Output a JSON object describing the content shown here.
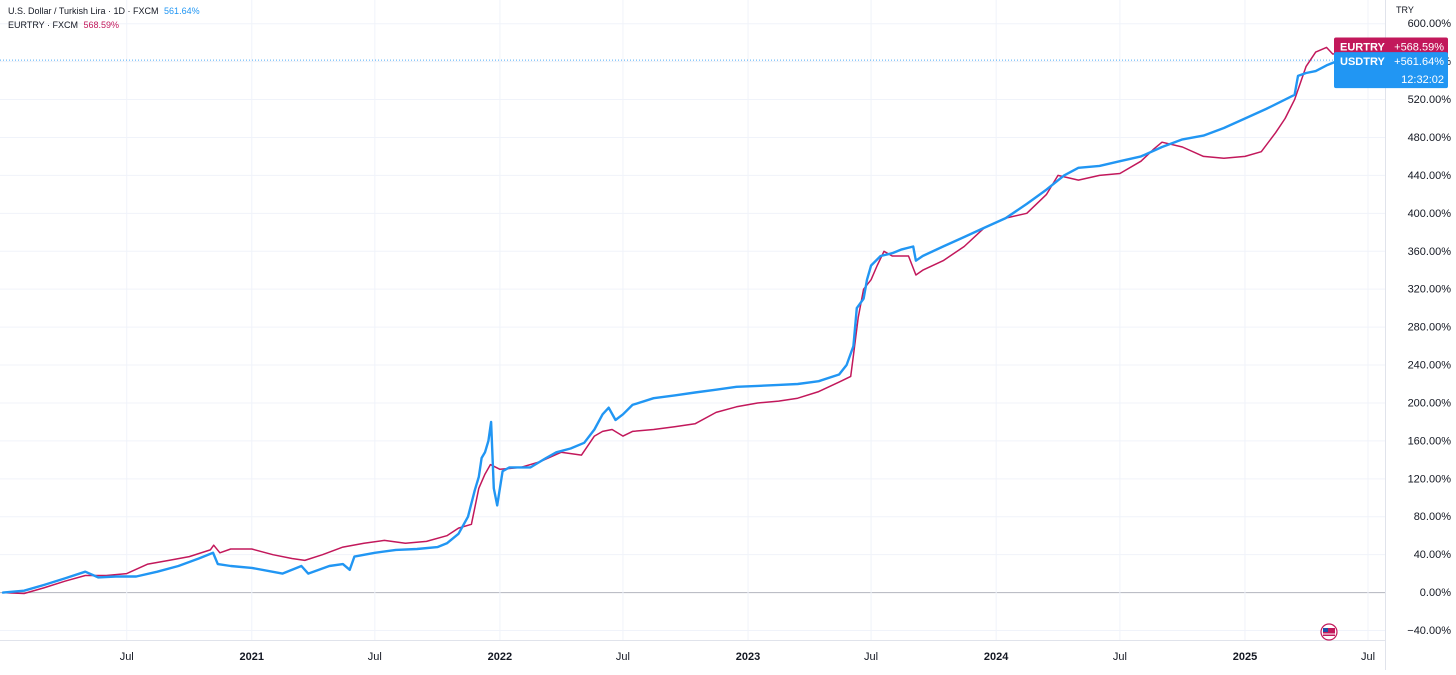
{
  "legend": [
    {
      "label": "U.S. Dollar / Turkish Lira · 1D · FXCM",
      "value": "561.64%",
      "color": "#2196f3"
    },
    {
      "label": "EURTRY · FXCM",
      "value": "568.59%",
      "color": "#c2185b"
    }
  ],
  "axis_unit": "TRY",
  "countdown": "12:32:02",
  "badges": [
    {
      "symbol": "EURTRY",
      "value": "+568.59%",
      "color": "#c2185b"
    },
    {
      "symbol": "USDTRY",
      "value": "+561.64%",
      "color": "#2196f3"
    }
  ],
  "chart_data": {
    "type": "line",
    "ylim": [
      -50,
      625
    ],
    "xlim": [
      "2020-01-01",
      "2025-07-26"
    ],
    "y_ticks": [
      {
        "v": 600,
        "label": "600.00%"
      },
      {
        "v": 560,
        "label": "560.00%"
      },
      {
        "v": 520,
        "label": "520.00%"
      },
      {
        "v": 480,
        "label": "480.00%"
      },
      {
        "v": 440,
        "label": "440.00%"
      },
      {
        "v": 400,
        "label": "400.00%"
      },
      {
        "v": 360,
        "label": "360.00%"
      },
      {
        "v": 320,
        "label": "320.00%"
      },
      {
        "v": 280,
        "label": "280.00%"
      },
      {
        "v": 240,
        "label": "240.00%"
      },
      {
        "v": 200,
        "label": "200.00%"
      },
      {
        "v": 160,
        "label": "160.00%"
      },
      {
        "v": 120,
        "label": "120.00%"
      },
      {
        "v": 80,
        "label": "80.00%"
      },
      {
        "v": 40,
        "label": "40.00%"
      },
      {
        "v": 0,
        "label": "0.00%"
      },
      {
        "v": -40,
        "label": "−40.00%"
      }
    ],
    "x_ticks": [
      {
        "date": "2020-07-01",
        "label": "Jul",
        "bold": false
      },
      {
        "date": "2021-01-01",
        "label": "2021",
        "bold": true
      },
      {
        "date": "2021-07-01",
        "label": "Jul",
        "bold": false
      },
      {
        "date": "2022-01-01",
        "label": "2022",
        "bold": true
      },
      {
        "date": "2022-07-01",
        "label": "Jul",
        "bold": false
      },
      {
        "date": "2023-01-01",
        "label": "2023",
        "bold": true
      },
      {
        "date": "2023-07-01",
        "label": "Jul",
        "bold": false
      },
      {
        "date": "2024-01-01",
        "label": "2024",
        "bold": true
      },
      {
        "date": "2024-07-01",
        "label": "Jul",
        "bold": false
      },
      {
        "date": "2025-01-01",
        "label": "2025",
        "bold": true
      },
      {
        "date": "2025-07-01",
        "label": "Jul",
        "bold": false
      }
    ],
    "series": [
      {
        "name": "USDTRY",
        "color": "#2196f3",
        "points": [
          [
            "2020-01-01",
            0
          ],
          [
            "2020-02-01",
            2
          ],
          [
            "2020-03-01",
            8
          ],
          [
            "2020-04-01",
            15
          ],
          [
            "2020-05-01",
            22
          ],
          [
            "2020-05-20",
            16
          ],
          [
            "2020-06-15",
            17
          ],
          [
            "2020-07-15",
            17
          ],
          [
            "2020-08-15",
            22
          ],
          [
            "2020-09-15",
            28
          ],
          [
            "2020-10-15",
            36
          ],
          [
            "2020-11-05",
            42
          ],
          [
            "2020-11-12",
            30
          ],
          [
            "2020-12-01",
            28
          ],
          [
            "2021-01-01",
            26
          ],
          [
            "2021-02-15",
            20
          ],
          [
            "2021-03-15",
            28
          ],
          [
            "2021-03-25",
            20
          ],
          [
            "2021-04-25",
            28
          ],
          [
            "2021-05-15",
            30
          ],
          [
            "2021-05-25",
            24
          ],
          [
            "2021-06-01",
            38
          ],
          [
            "2021-07-01",
            42
          ],
          [
            "2021-08-01",
            45
          ],
          [
            "2021-09-01",
            46
          ],
          [
            "2021-10-01",
            48
          ],
          [
            "2021-10-15",
            52
          ],
          [
            "2021-11-01",
            62
          ],
          [
            "2021-11-15",
            80
          ],
          [
            "2021-11-25",
            108
          ],
          [
            "2021-12-01",
            122
          ],
          [
            "2021-12-05",
            142
          ],
          [
            "2021-12-10",
            148
          ],
          [
            "2021-12-15",
            160
          ],
          [
            "2021-12-19",
            180
          ],
          [
            "2021-12-23",
            110
          ],
          [
            "2021-12-28",
            92
          ],
          [
            "2022-01-05",
            128
          ],
          [
            "2022-01-15",
            132
          ],
          [
            "2022-02-15",
            132
          ],
          [
            "2022-03-10",
            142
          ],
          [
            "2022-03-25",
            148
          ],
          [
            "2022-04-15",
            152
          ],
          [
            "2022-05-05",
            158
          ],
          [
            "2022-05-20",
            172
          ],
          [
            "2022-06-01",
            188
          ],
          [
            "2022-06-10",
            195
          ],
          [
            "2022-06-20",
            182
          ],
          [
            "2022-07-01",
            188
          ],
          [
            "2022-07-15",
            198
          ],
          [
            "2022-08-15",
            205
          ],
          [
            "2022-09-15",
            208
          ],
          [
            "2022-10-15",
            211
          ],
          [
            "2022-11-15",
            214
          ],
          [
            "2022-12-15",
            217
          ],
          [
            "2023-01-15",
            218
          ],
          [
            "2023-02-15",
            219
          ],
          [
            "2023-03-15",
            220
          ],
          [
            "2023-04-15",
            223
          ],
          [
            "2023-05-15",
            230
          ],
          [
            "2023-05-26",
            240
          ],
          [
            "2023-06-05",
            260
          ],
          [
            "2023-06-10",
            300
          ],
          [
            "2023-06-20",
            310
          ],
          [
            "2023-06-25",
            330
          ],
          [
            "2023-07-01",
            345
          ],
          [
            "2023-07-15",
            355
          ],
          [
            "2023-08-01",
            358
          ],
          [
            "2023-08-15",
            362
          ],
          [
            "2023-09-01",
            365
          ],
          [
            "2023-09-05",
            350
          ],
          [
            "2023-09-15",
            355
          ],
          [
            "2023-10-15",
            365
          ],
          [
            "2023-11-15",
            375
          ],
          [
            "2023-12-15",
            385
          ],
          [
            "2024-01-15",
            395
          ],
          [
            "2024-02-15",
            410
          ],
          [
            "2024-03-15",
            425
          ],
          [
            "2024-04-10",
            440
          ],
          [
            "2024-05-01",
            448
          ],
          [
            "2024-06-01",
            450
          ],
          [
            "2024-07-01",
            455
          ],
          [
            "2024-08-01",
            460
          ],
          [
            "2024-09-01",
            470
          ],
          [
            "2024-10-01",
            478
          ],
          [
            "2024-11-01",
            482
          ],
          [
            "2024-12-01",
            490
          ],
          [
            "2025-01-01",
            500
          ],
          [
            "2025-02-01",
            510
          ],
          [
            "2025-03-01",
            520
          ],
          [
            "2025-03-15",
            525
          ],
          [
            "2025-03-20",
            545
          ],
          [
            "2025-04-01",
            548
          ],
          [
            "2025-04-15",
            550
          ],
          [
            "2025-05-01",
            556
          ],
          [
            "2025-05-20",
            561.64
          ]
        ]
      },
      {
        "name": "EURTRY",
        "color": "#c2185b",
        "points": [
          [
            "2020-01-01",
            0
          ],
          [
            "2020-02-01",
            -1
          ],
          [
            "2020-03-01",
            5
          ],
          [
            "2020-04-01",
            12
          ],
          [
            "2020-05-01",
            18
          ],
          [
            "2020-06-01",
            18
          ],
          [
            "2020-07-01",
            20
          ],
          [
            "2020-08-01",
            30
          ],
          [
            "2020-09-01",
            34
          ],
          [
            "2020-10-01",
            38
          ],
          [
            "2020-11-01",
            45
          ],
          [
            "2020-11-06",
            50
          ],
          [
            "2020-11-15",
            42
          ],
          [
            "2020-12-01",
            46
          ],
          [
            "2021-01-01",
            46
          ],
          [
            "2021-02-01",
            40
          ],
          [
            "2021-03-01",
            36
          ],
          [
            "2021-03-20",
            34
          ],
          [
            "2021-04-15",
            40
          ],
          [
            "2021-05-15",
            48
          ],
          [
            "2021-06-15",
            52
          ],
          [
            "2021-07-15",
            55
          ],
          [
            "2021-08-15",
            52
          ],
          [
            "2021-09-15",
            54
          ],
          [
            "2021-10-15",
            60
          ],
          [
            "2021-11-01",
            68
          ],
          [
            "2021-11-20",
            72
          ],
          [
            "2021-12-01",
            110
          ],
          [
            "2021-12-10",
            125
          ],
          [
            "2021-12-18",
            135
          ],
          [
            "2022-01-01",
            130
          ],
          [
            "2022-02-01",
            132
          ],
          [
            "2022-03-01",
            138
          ],
          [
            "2022-04-01",
            148
          ],
          [
            "2022-05-01",
            145
          ],
          [
            "2022-05-20",
            165
          ],
          [
            "2022-06-01",
            170
          ],
          [
            "2022-06-15",
            172
          ],
          [
            "2022-07-01",
            165
          ],
          [
            "2022-07-15",
            170
          ],
          [
            "2022-08-15",
            172
          ],
          [
            "2022-09-15",
            175
          ],
          [
            "2022-10-15",
            178
          ],
          [
            "2022-11-15",
            190
          ],
          [
            "2022-12-15",
            196
          ],
          [
            "2023-01-15",
            200
          ],
          [
            "2023-02-15",
            202
          ],
          [
            "2023-03-15",
            205
          ],
          [
            "2023-04-15",
            212
          ],
          [
            "2023-05-15",
            222
          ],
          [
            "2023-06-01",
            228
          ],
          [
            "2023-06-05",
            250
          ],
          [
            "2023-06-12",
            290
          ],
          [
            "2023-06-20",
            320
          ],
          [
            "2023-07-01",
            330
          ],
          [
            "2023-07-10",
            345
          ],
          [
            "2023-07-20",
            360
          ],
          [
            "2023-08-01",
            355
          ],
          [
            "2023-08-25",
            355
          ],
          [
            "2023-09-05",
            335
          ],
          [
            "2023-09-15",
            340
          ],
          [
            "2023-10-15",
            350
          ],
          [
            "2023-11-15",
            365
          ],
          [
            "2023-12-15",
            385
          ],
          [
            "2024-01-15",
            395
          ],
          [
            "2024-02-15",
            400
          ],
          [
            "2024-03-15",
            420
          ],
          [
            "2024-04-01",
            440
          ],
          [
            "2024-05-01",
            435
          ],
          [
            "2024-06-01",
            440
          ],
          [
            "2024-07-01",
            442
          ],
          [
            "2024-08-01",
            455
          ],
          [
            "2024-08-20",
            468
          ],
          [
            "2024-09-01",
            475
          ],
          [
            "2024-10-01",
            470
          ],
          [
            "2024-11-01",
            460
          ],
          [
            "2024-12-01",
            458
          ],
          [
            "2025-01-01",
            460
          ],
          [
            "2025-01-25",
            465
          ],
          [
            "2025-02-15",
            485
          ],
          [
            "2025-03-01",
            500
          ],
          [
            "2025-03-15",
            520
          ],
          [
            "2025-04-01",
            555
          ],
          [
            "2025-04-15",
            570
          ],
          [
            "2025-05-01",
            575
          ],
          [
            "2025-05-10",
            568
          ],
          [
            "2025-05-20",
            568.59
          ]
        ]
      }
    ]
  }
}
